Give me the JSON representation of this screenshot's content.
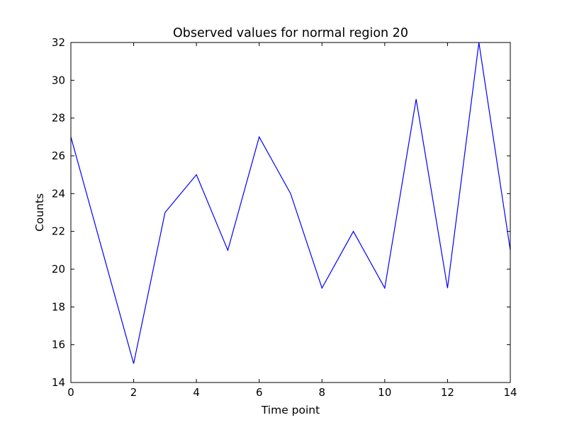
{
  "chart_data": {
    "type": "line",
    "title": "Observed values for normal region 20",
    "xlabel": "Time point",
    "ylabel": "Counts",
    "xlim": [
      0,
      14
    ],
    "ylim": [
      14,
      32
    ],
    "xticks": [
      0,
      2,
      4,
      6,
      8,
      10,
      12,
      14
    ],
    "yticks": [
      14,
      16,
      18,
      20,
      22,
      24,
      26,
      28,
      30,
      32
    ],
    "grid": false,
    "legend": "none",
    "series": [
      {
        "color": "#0000ff",
        "x": [
          0,
          1,
          2,
          3,
          4,
          5,
          6,
          7,
          8,
          9,
          10,
          11,
          12,
          13,
          14
        ],
        "values": [
          27,
          21,
          15,
          23,
          25,
          21,
          27,
          24,
          19,
          22,
          19,
          29,
          19,
          32,
          21
        ]
      }
    ]
  }
}
